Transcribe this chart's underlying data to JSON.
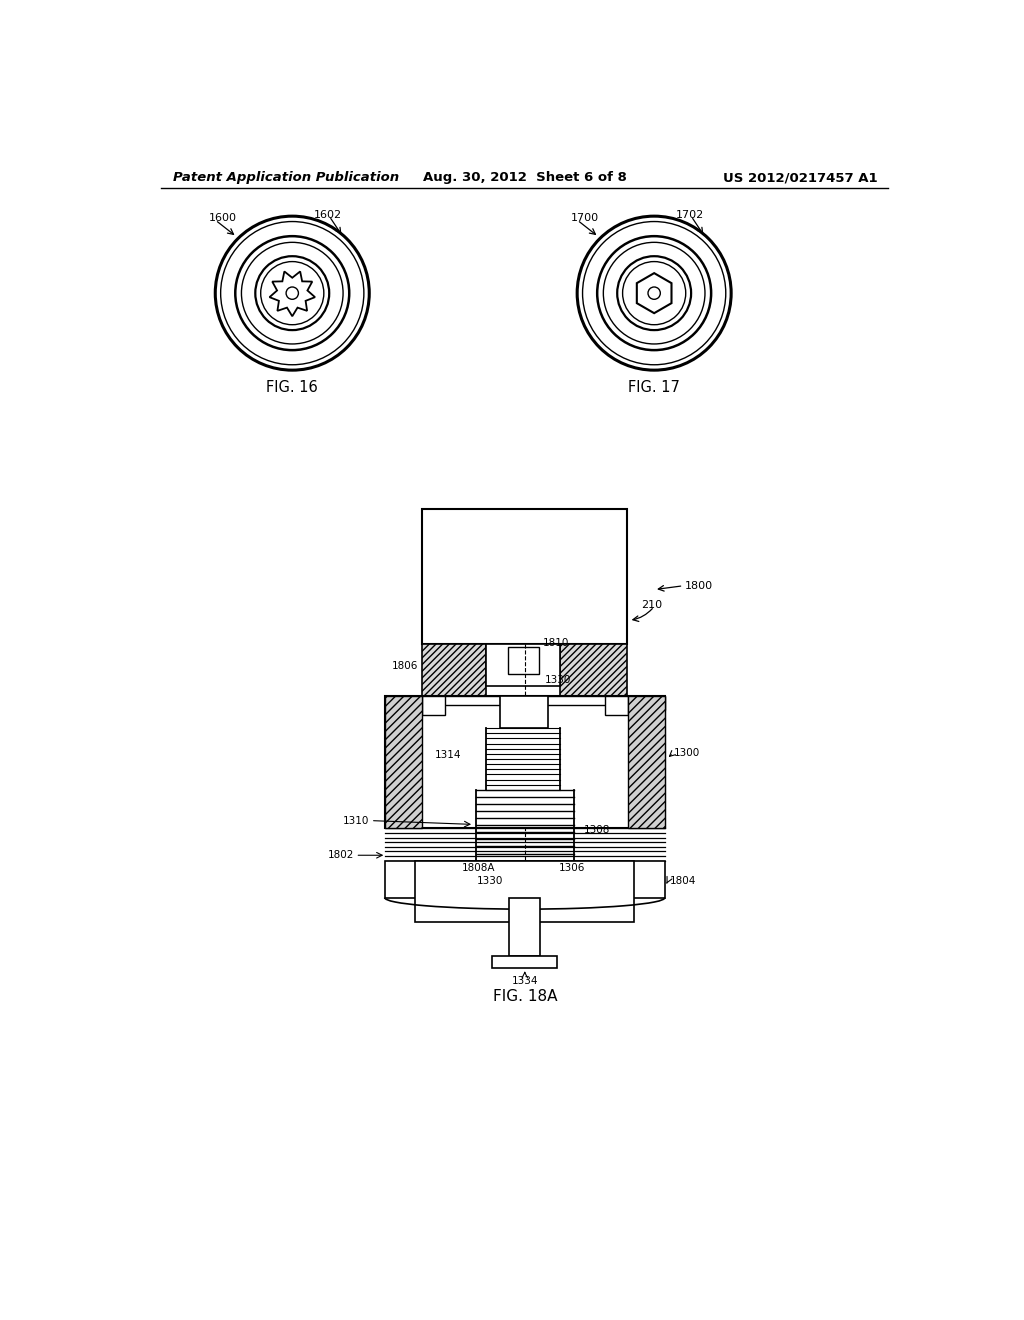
{
  "bg_color": "#ffffff",
  "header_left": "Patent Application Publication",
  "header_mid": "Aug. 30, 2012  Sheet 6 of 8",
  "header_right": "US 2012/0217457 A1",
  "fig16_label": "FIG. 16",
  "fig17_label": "FIG. 17",
  "fig18a_label": "FIG. 18A",
  "label_1600": "1600",
  "label_1602": "1602",
  "label_1700": "1700",
  "label_1702": "1702",
  "label_210": "210",
  "label_1800": "1800",
  "label_1806": "1806",
  "label_1810": "1810",
  "label_1330_top": "1330",
  "label_1300": "1300",
  "label_1310": "1310",
  "label_1314": "1314",
  "label_1308": "1308",
  "label_1802": "1802",
  "label_1808A": "1808A",
  "label_1330_bot": "1330",
  "label_1306": "1306",
  "label_1804": "1804",
  "label_1334": "1334"
}
